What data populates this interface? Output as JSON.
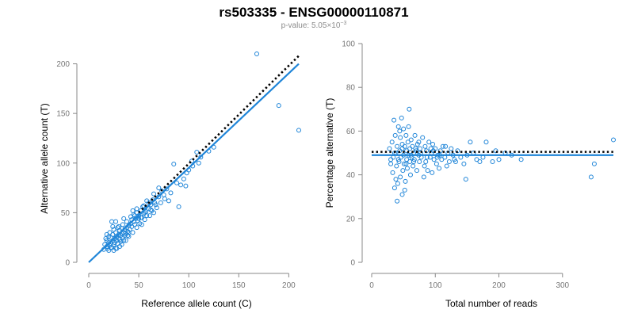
{
  "header": {
    "title": "rs503335 - ENSG00000110871",
    "pvalue_prefix": "p-value: 5.05",
    "pvalue_times": "×",
    "pvalue_base": "10",
    "pvalue_exp": "−3"
  },
  "colors": {
    "points": "#1f85d8",
    "fit_line": "#1f85d8",
    "reference_line": "#000000",
    "axis": "#888888"
  },
  "chart_data": [
    {
      "type": "scatter",
      "xlabel": "Reference allele count (C)",
      "ylabel": "Alternative allele count (T)",
      "xlim": [
        0,
        210
      ],
      "ylim": [
        0,
        210
      ],
      "xticks": [
        "0",
        "50",
        "100",
        "150",
        "200"
      ],
      "yticks": [
        "0",
        "50",
        "100",
        "150",
        "200"
      ],
      "grid": false,
      "fit_line": {
        "x": [
          0,
          210
        ],
        "y": [
          0,
          200
        ]
      },
      "reference_line": {
        "x": [
          50,
          210
        ],
        "y": [
          50,
          208
        ]
      },
      "points": [
        [
          15,
          13
        ],
        [
          16,
          18
        ],
        [
          17,
          24
        ],
        [
          18,
          16
        ],
        [
          18,
          22
        ],
        [
          19,
          14
        ],
        [
          20,
          26
        ],
        [
          20,
          20
        ],
        [
          21,
          17
        ],
        [
          21,
          30
        ],
        [
          22,
          25
        ],
        [
          22,
          19
        ],
        [
          23,
          41
        ],
        [
          23,
          15
        ],
        [
          24,
          22
        ],
        [
          24,
          28
        ],
        [
          25,
          18
        ],
        [
          25,
          33
        ],
        [
          26,
          24
        ],
        [
          26,
          20
        ],
        [
          27,
          30
        ],
        [
          27,
          14
        ],
        [
          28,
          26
        ],
        [
          28,
          22
        ],
        [
          29,
          35
        ],
        [
          29,
          19
        ],
        [
          30,
          28
        ],
        [
          30,
          24
        ],
        [
          31,
          32
        ],
        [
          31,
          16
        ],
        [
          32,
          27
        ],
        [
          32,
          21
        ],
        [
          33,
          34
        ],
        [
          33,
          29
        ],
        [
          34,
          25
        ],
        [
          34,
          38
        ],
        [
          35,
          30
        ],
        [
          35,
          22
        ],
        [
          36,
          33
        ],
        [
          36,
          27
        ],
        [
          37,
          29
        ],
        [
          38,
          41
        ],
        [
          38,
          35
        ],
        [
          39,
          31
        ],
        [
          40,
          37
        ],
        [
          40,
          26
        ],
        [
          41,
          33
        ],
        [
          42,
          46
        ],
        [
          42,
          39
        ],
        [
          43,
          36
        ],
        [
          44,
          30
        ],
        [
          45,
          48
        ],
        [
          45,
          41
        ],
        [
          46,
          38
        ],
        [
          47,
          44
        ],
        [
          48,
          35
        ],
        [
          48,
          50
        ],
        [
          49,
          42
        ],
        [
          50,
          47
        ],
        [
          51,
          39
        ],
        [
          52,
          52
        ],
        [
          53,
          45
        ],
        [
          54,
          56
        ],
        [
          55,
          49
        ],
        [
          56,
          43
        ],
        [
          57,
          51
        ],
        [
          58,
          62
        ],
        [
          60,
          54
        ],
        [
          61,
          47
        ],
        [
          62,
          58
        ],
        [
          63,
          52
        ],
        [
          64,
          63
        ],
        [
          65,
          50
        ],
        [
          66,
          60
        ],
        [
          68,
          55
        ],
        [
          70,
          66
        ],
        [
          72,
          60
        ],
        [
          73,
          72
        ],
        [
          75,
          68
        ],
        [
          78,
          74
        ],
        [
          80,
          62
        ],
        [
          82,
          70
        ],
        [
          85,
          99
        ],
        [
          90,
          56
        ],
        [
          95,
          84
        ],
        [
          97,
          77
        ],
        [
          100,
          93
        ],
        [
          103,
          102
        ],
        [
          108,
          111
        ],
        [
          112,
          106
        ],
        [
          120,
          112
        ],
        [
          125,
          116
        ],
        [
          168,
          210
        ],
        [
          190,
          158
        ],
        [
          210,
          133
        ],
        [
          20,
          12
        ],
        [
          22,
          15
        ],
        [
          25,
          12
        ],
        [
          28,
          14
        ],
        [
          30,
          36
        ],
        [
          33,
          18
        ],
        [
          37,
          22
        ],
        [
          40,
          30
        ],
        [
          43,
          43
        ],
        [
          46,
          47
        ],
        [
          50,
          44
        ],
        [
          53,
          38
        ],
        [
          55,
          57
        ],
        [
          58,
          47
        ],
        [
          60,
          60
        ],
        [
          65,
          69
        ],
        [
          67,
          58
        ],
        [
          70,
          75
        ],
        [
          76,
          64
        ],
        [
          88,
          80
        ],
        [
          92,
          78
        ],
        [
          98,
          90
        ],
        [
          104,
          97
        ],
        [
          110,
          100
        ],
        [
          18,
          28
        ],
        [
          24,
          36
        ],
        [
          27,
          41
        ],
        [
          31,
          23
        ],
        [
          35,
          44
        ],
        [
          39,
          27
        ],
        [
          44,
          52
        ],
        [
          48,
          54
        ],
        [
          52,
          45
        ],
        [
          56,
          50
        ],
        [
          62,
          53
        ]
      ]
    },
    {
      "type": "scatter",
      "xlabel": "Total number of reads",
      "ylabel": "Percentage alternative (T)",
      "xlim": [
        0,
        380
      ],
      "ylim": [
        0,
        100
      ],
      "xticks": [
        "0",
        "100",
        "200",
        "300"
      ],
      "yticks": [
        "0",
        "20",
        "40",
        "60",
        "80",
        "100"
      ],
      "grid": false,
      "fit_line": {
        "x": [
          0,
          380
        ],
        "y": [
          49,
          49
        ]
      },
      "reference_line": {
        "x": [
          0,
          380
        ],
        "y": [
          50.5,
          50.5
        ]
      },
      "points": [
        [
          28,
          52
        ],
        [
          30,
          47
        ],
        [
          32,
          55
        ],
        [
          33,
          41
        ],
        [
          34,
          48
        ],
        [
          35,
          65
        ],
        [
          36,
          34
        ],
        [
          37,
          58
        ],
        [
          38,
          50
        ],
        [
          39,
          44
        ],
        [
          40,
          53
        ],
        [
          40,
          28
        ],
        [
          41,
          36
        ],
        [
          42,
          62
        ],
        [
          43,
          46
        ],
        [
          44,
          51
        ],
        [
          45,
          39
        ],
        [
          45,
          57
        ],
        [
          46,
          48
        ],
        [
          47,
          66
        ],
        [
          48,
          31
        ],
        [
          48,
          54
        ],
        [
          49,
          42
        ],
        [
          50,
          49
        ],
        [
          50,
          61
        ],
        [
          51,
          45
        ],
        [
          52,
          53
        ],
        [
          53,
          37
        ],
        [
          54,
          58
        ],
        [
          55,
          47
        ],
        [
          55,
          51
        ],
        [
          56,
          43
        ],
        [
          57,
          55
        ],
        [
          58,
          49
        ],
        [
          59,
          70
        ],
        [
          60,
          46
        ],
        [
          60,
          52
        ],
        [
          61,
          40
        ],
        [
          62,
          56
        ],
        [
          63,
          48
        ],
        [
          64,
          53
        ],
        [
          65,
          44
        ],
        [
          66,
          50
        ],
        [
          67,
          47
        ],
        [
          68,
          58
        ],
        [
          70,
          51
        ],
        [
          71,
          42
        ],
        [
          72,
          54
        ],
        [
          74,
          49
        ],
        [
          75,
          46
        ],
        [
          76,
          52
        ],
        [
          78,
          48
        ],
        [
          80,
          57
        ],
        [
          82,
          39
        ],
        [
          84,
          53
        ],
        [
          85,
          46
        ],
        [
          86,
          51
        ],
        [
          88,
          42
        ],
        [
          90,
          55
        ],
        [
          92,
          48
        ],
        [
          94,
          50
        ],
        [
          95,
          41
        ],
        [
          96,
          54
        ],
        [
          98,
          47
        ],
        [
          100,
          52
        ],
        [
          102,
          45
        ],
        [
          104,
          49
        ],
        [
          106,
          43
        ],
        [
          108,
          51
        ],
        [
          110,
          47
        ],
        [
          112,
          53
        ],
        [
          115,
          48
        ],
        [
          118,
          44
        ],
        [
          120,
          50
        ],
        [
          122,
          46
        ],
        [
          125,
          52
        ],
        [
          128,
          49
        ],
        [
          130,
          47
        ],
        [
          135,
          51
        ],
        [
          140,
          48
        ],
        [
          145,
          45
        ],
        [
          148,
          38
        ],
        [
          150,
          49
        ],
        [
          155,
          55
        ],
        [
          165,
          47
        ],
        [
          170,
          46
        ],
        [
          180,
          55
        ],
        [
          190,
          46
        ],
        [
          200,
          47
        ],
        [
          210,
          50
        ],
        [
          220,
          49
        ],
        [
          235,
          47
        ],
        [
          345,
          39
        ],
        [
          350,
          45
        ],
        [
          380,
          56
        ],
        [
          30,
          45
        ],
        [
          38,
          38
        ],
        [
          44,
          60
        ],
        [
          52,
          33
        ],
        [
          58,
          62
        ],
        [
          66,
          46
        ],
        [
          74,
          55
        ],
        [
          83,
          44
        ],
        [
          93,
          52
        ],
        [
          103,
          48
        ],
        [
          116,
          53
        ],
        [
          132,
          46
        ],
        [
          160,
          50
        ],
        [
          175,
          48
        ],
        [
          195,
          51
        ],
        [
          36,
          50
        ],
        [
          42,
          47
        ],
        [
          48,
          52
        ],
        [
          54,
          45
        ],
        [
          62,
          49
        ],
        [
          69,
          52
        ],
        [
          77,
          50
        ],
        [
          87,
          48
        ],
        [
          97,
          51
        ],
        [
          107,
          49
        ]
      ]
    }
  ]
}
